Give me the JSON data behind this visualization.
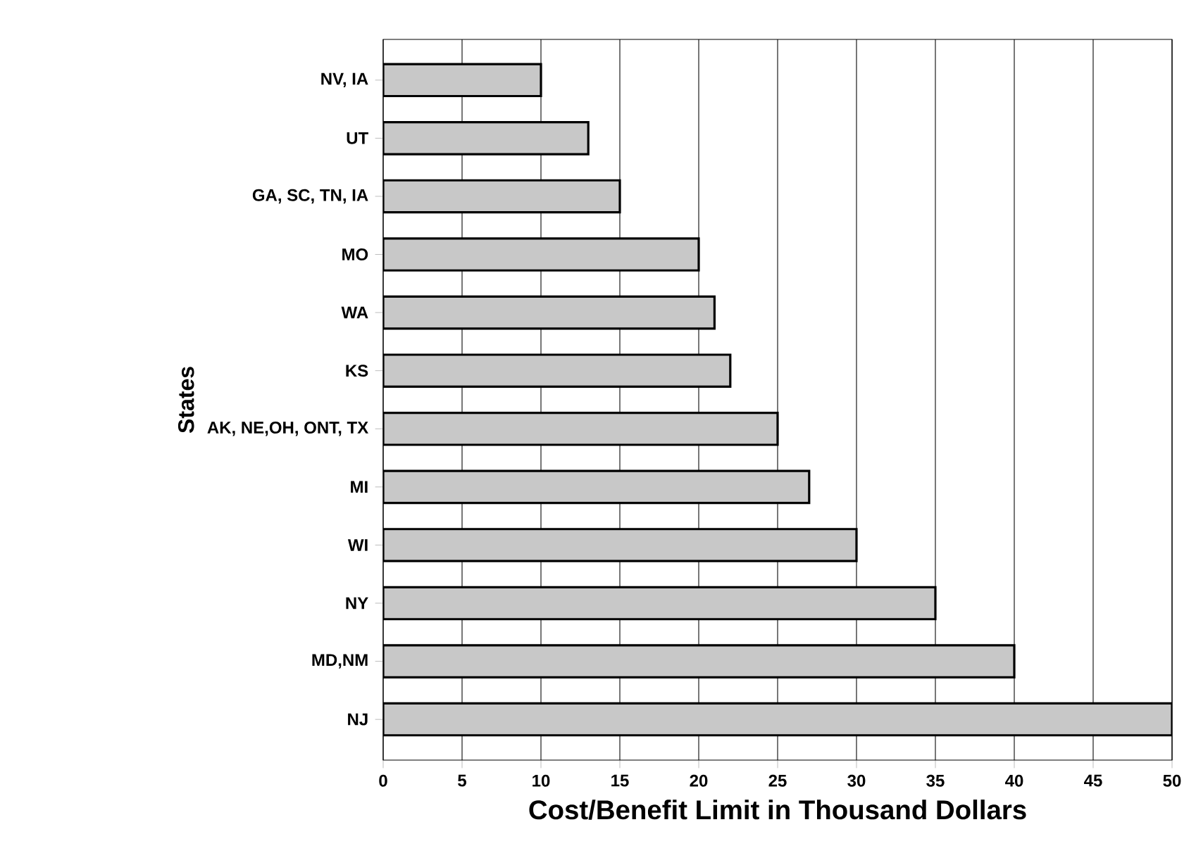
{
  "chart_data": {
    "type": "bar",
    "orientation": "horizontal",
    "xlabel": "Cost/Benefit Limit in Thousand Dollars",
    "ylabel": "States",
    "categories": [
      "NV, IA",
      "UT",
      "GA, SC, TN, IA",
      "MO",
      "WA",
      "KS",
      "AK, NE,OH, ONT, TX",
      "MI",
      "WI",
      "NY",
      "MD,NM",
      "NJ"
    ],
    "values": [
      10,
      13,
      15,
      20,
      21,
      22,
      25,
      27,
      30,
      35,
      40,
      50
    ],
    "color": "#c8c8c8",
    "xlim": [
      0,
      50
    ],
    "xticks": [
      0,
      5,
      10,
      15,
      20,
      25,
      30,
      35,
      40,
      45,
      50
    ],
    "grid": "x"
  }
}
